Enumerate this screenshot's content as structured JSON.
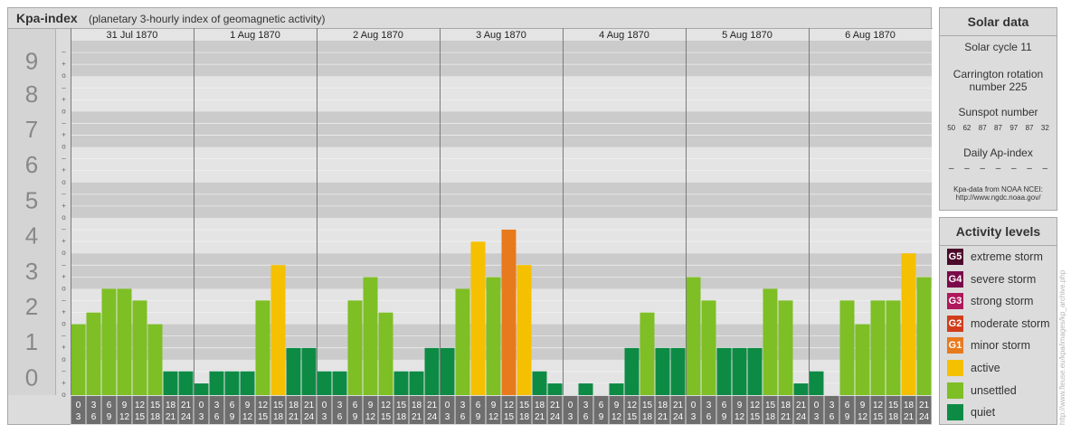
{
  "header": {
    "title": "Kpa-index",
    "subtitle": "(planetary 3-hourly index of geomagnetic activity)"
  },
  "chart_data": {
    "type": "bar",
    "title": "Kpa-index",
    "subtitle": "(planetary 3-hourly index of geomagnetic activity)",
    "ylim": [
      0,
      9
    ],
    "y_ticks": [
      "0",
      "1",
      "2",
      "3",
      "4",
      "5",
      "6",
      "7",
      "8",
      "9"
    ],
    "y_subticks": [
      "o",
      "+",
      "–"
    ],
    "days": [
      "31 Jul 1870",
      "1 Aug 1870",
      "2 Aug 1870",
      "3 Aug 1870",
      "4 Aug 1870",
      "5 Aug 1870",
      "6 Aug 1870"
    ],
    "hour_ticks_top": [
      "0",
      "3",
      "6",
      "9",
      "12",
      "15",
      "18",
      "21"
    ],
    "hour_ticks_bottom": [
      "3",
      "6",
      "9",
      "12",
      "15",
      "18",
      "21",
      "24"
    ],
    "values": [
      [
        2.0,
        2.33,
        3.0,
        3.0,
        2.67,
        2.0,
        0.67,
        0.67
      ],
      [
        0.33,
        0.67,
        0.67,
        0.67,
        2.67,
        3.67,
        1.33,
        1.33
      ],
      [
        0.67,
        0.67,
        2.67,
        3.33,
        2.33,
        0.67,
        0.67,
        1.33
      ],
      [
        1.33,
        3.0,
        4.33,
        3.33,
        4.67,
        3.67,
        0.67,
        0.33
      ],
      [
        0.0,
        0.33,
        0.0,
        0.33,
        1.33,
        2.33,
        1.33,
        1.33
      ],
      [
        3.33,
        2.67,
        1.33,
        1.33,
        1.33,
        3.0,
        2.67,
        0.33
      ],
      [
        0.67,
        0.0,
        2.67,
        2.0,
        2.67,
        2.67,
        4.0,
        3.33
      ]
    ],
    "levels": [
      [
        "unsettled",
        "unsettled",
        "unsettled",
        "unsettled",
        "unsettled",
        "unsettled",
        "quiet",
        "quiet"
      ],
      [
        "quiet",
        "quiet",
        "quiet",
        "quiet",
        "unsettled",
        "active",
        "quiet",
        "quiet"
      ],
      [
        "quiet",
        "quiet",
        "unsettled",
        "unsettled",
        "unsettled",
        "quiet",
        "quiet",
        "quiet"
      ],
      [
        "quiet",
        "unsettled",
        "active",
        "unsettled",
        "minor storm",
        "active",
        "quiet",
        "quiet"
      ],
      [
        "quiet",
        "quiet",
        "quiet",
        "quiet",
        "quiet",
        "unsettled",
        "quiet",
        "quiet"
      ],
      [
        "unsettled",
        "unsettled",
        "quiet",
        "quiet",
        "quiet",
        "unsettled",
        "unsettled",
        "quiet"
      ],
      [
        "quiet",
        "quiet",
        "unsettled",
        "unsettled",
        "unsettled",
        "unsettled",
        "active",
        "unsettled"
      ]
    ]
  },
  "solar_data": {
    "title": "Solar data",
    "solar_cycle": "Solar cycle 11",
    "carrington_line1": "Carrington rotation",
    "carrington_line2": "number 225",
    "sunspot_label": "Sunspot number",
    "sunspot_values": [
      "50",
      "62",
      "87",
      "87",
      "97",
      "87",
      "32"
    ],
    "ap_label": "Daily Ap-index",
    "ap_values": [
      "–",
      "–",
      "–",
      "–",
      "–",
      "–",
      "–"
    ],
    "source_line1": "Kpa-data from NOAA NCEI:",
    "source_line2": "http://www.ngdc.noaa.gov/"
  },
  "activity_levels": {
    "title": "Activity levels",
    "items": [
      {
        "code": "G5",
        "label": "extreme storm",
        "color": "#4c0a2a"
      },
      {
        "code": "G4",
        "label": "severe storm",
        "color": "#7a0a4a"
      },
      {
        "code": "G3",
        "label": "strong storm",
        "color": "#b0175d"
      },
      {
        "code": "G2",
        "label": "moderate storm",
        "color": "#d13d1b"
      },
      {
        "code": "G1",
        "label": "minor storm",
        "color": "#e87a1e"
      },
      {
        "code": "",
        "label": "active",
        "color": "#f5c000"
      },
      {
        "code": "",
        "label": "unsettled",
        "color": "#7dbf24"
      },
      {
        "code": "",
        "label": "quiet",
        "color": "#0d8b45"
      }
    ]
  },
  "colors": {
    "quiet": "#0d8b45",
    "unsettled": "#7dbf24",
    "active": "#f5c000",
    "minor storm": "#e87a1e"
  },
  "watermark": "http://www.fleuse.eu/kpa/images/kp_archive.php"
}
